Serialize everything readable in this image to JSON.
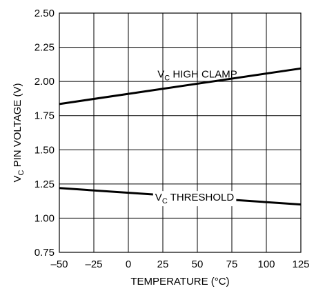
{
  "chart_data": {
    "type": "line",
    "title": "",
    "xlabel": "TEMPERATURE (°C)",
    "ylabel_main": "V",
    "ylabel_sub": "C",
    "ylabel_rest": " PIN VOLTAGE (V)",
    "xlim": [
      -50,
      125
    ],
    "ylim": [
      0.75,
      2.5
    ],
    "xticks": [
      -50,
      -25,
      0,
      25,
      50,
      75,
      100,
      125
    ],
    "xtick_labels": [
      "–50",
      "–25",
      "0",
      "25",
      "50",
      "75",
      "100",
      "125"
    ],
    "yticks": [
      0.75,
      1.0,
      1.25,
      1.5,
      1.75,
      2.0,
      2.25,
      2.5
    ],
    "ytick_labels": [
      "0.75",
      "1.00",
      "1.25",
      "1.50",
      "1.75",
      "2.00",
      "2.25",
      "2.50"
    ],
    "grid": true,
    "series": [
      {
        "name_main": "V",
        "name_sub": "C",
        "name_rest": " HIGH CLAMP",
        "x": [
          -50,
          125
        ],
        "values": [
          1.835,
          2.095
        ]
      },
      {
        "name_main": "V",
        "name_sub": "C",
        "name_rest": " THRESHOLD",
        "x": [
          -50,
          125
        ],
        "values": [
          1.22,
          1.1
        ]
      }
    ]
  }
}
